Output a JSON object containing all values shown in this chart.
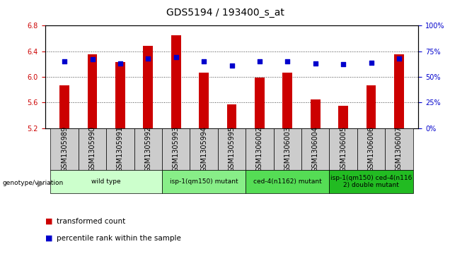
{
  "title": "GDS5194 / 193400_s_at",
  "samples": [
    "GSM1305989",
    "GSM1305990",
    "GSM1305991",
    "GSM1305992",
    "GSM1305993",
    "GSM1305994",
    "GSM1305995",
    "GSM1306002",
    "GSM1306003",
    "GSM1306004",
    "GSM1306005",
    "GSM1306006",
    "GSM1306007"
  ],
  "transformed_count": [
    5.87,
    6.35,
    6.23,
    6.48,
    6.65,
    6.06,
    5.57,
    5.99,
    6.06,
    5.65,
    5.55,
    5.87,
    6.35
  ],
  "percentile_rank": [
    65,
    67,
    63,
    68,
    69,
    65,
    61,
    65,
    65,
    63,
    62,
    64,
    68
  ],
  "ylim_left": [
    5.2,
    6.8
  ],
  "ylim_right": [
    0,
    100
  ],
  "yticks_left": [
    5.2,
    5.6,
    6.0,
    6.4,
    6.8
  ],
  "yticks_right": [
    0,
    25,
    50,
    75,
    100
  ],
  "bar_color": "#cc0000",
  "dot_color": "#0000cc",
  "bar_bottom": 5.2,
  "groups": [
    {
      "label": "wild type",
      "indices": [
        0,
        1,
        2,
        3
      ],
      "color": "#ccffcc"
    },
    {
      "label": "isp-1(qm150) mutant",
      "indices": [
        4,
        5,
        6
      ],
      "color": "#88ee88"
    },
    {
      "label": "ced-4(n1162) mutant",
      "indices": [
        7,
        8,
        9
      ],
      "color": "#55dd55"
    },
    {
      "label": "isp-1(qm150) ced-4(n116\n2) double mutant",
      "indices": [
        10,
        11,
        12
      ],
      "color": "#22bb22"
    }
  ],
  "grid_dotted_color": "#444444",
  "sample_bg_color": "#cccccc",
  "plot_bg": "#ffffff",
  "ylabel_left_color": "#cc0000",
  "ylabel_right_color": "#0000cc",
  "bar_width": 0.35,
  "title_fontsize": 10,
  "tick_fontsize": 7,
  "group_fontsize": 6.5,
  "legend_fontsize": 7.5
}
